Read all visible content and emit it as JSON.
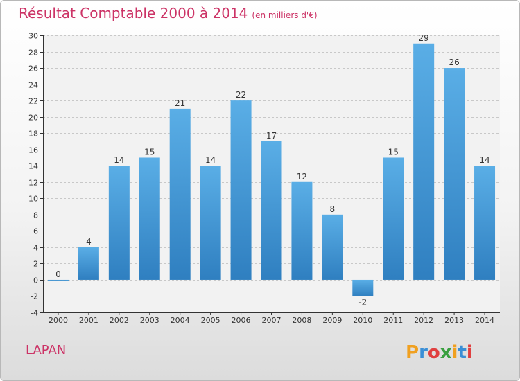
{
  "header": {
    "title": "Résultat Comptable 2000 à 2014",
    "subtitle": "(en milliers d'€)"
  },
  "footer": {
    "commune": "LAPAN",
    "logo_text": "Proxiti"
  },
  "colors": {
    "title": "#cc3366",
    "bar_top": "#5aaee6",
    "bar_bottom": "#2f7fc0"
  },
  "chart_data": {
    "type": "bar",
    "title": "Résultat Comptable 2000 à 2014",
    "subtitle": "(en milliers d'€)",
    "categories": [
      "2000",
      "2001",
      "2002",
      "2003",
      "2004",
      "2005",
      "2006",
      "2007",
      "2008",
      "2009",
      "2010",
      "2011",
      "2012",
      "2013",
      "2014"
    ],
    "values": [
      0,
      4,
      14,
      15,
      21,
      14,
      22,
      17,
      12,
      8,
      -2,
      15,
      29,
      26,
      14
    ],
    "ylim": [
      -4,
      30
    ],
    "yticks": [
      -4,
      -2,
      0,
      2,
      4,
      6,
      8,
      10,
      12,
      14,
      16,
      18,
      20,
      22,
      24,
      26,
      28,
      30
    ],
    "grid": true
  }
}
